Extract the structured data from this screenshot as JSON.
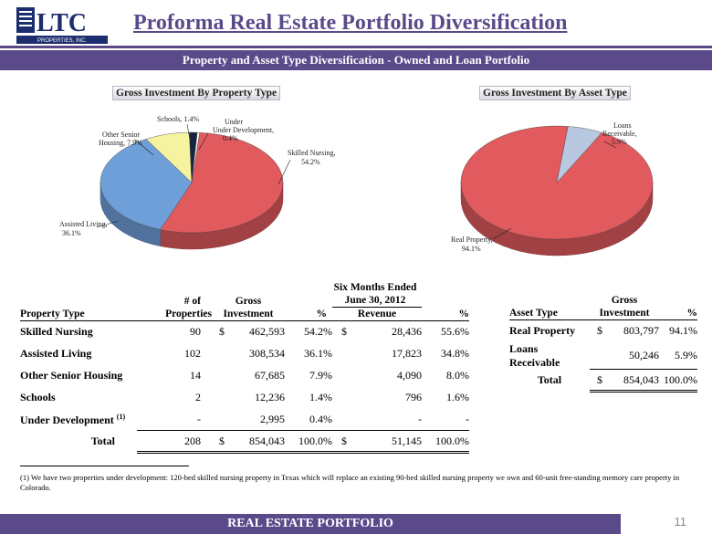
{
  "logo": {
    "text": "LTC",
    "subtext": "PROPERTIES, INC."
  },
  "title": "Proforma Real Estate Portfolio Diversification",
  "banner": "Property and Asset Type Diversification - Owned and Loan Portfolio",
  "chart_data": [
    {
      "type": "pie",
      "title": "Gross Investment By Property Type",
      "slices": [
        {
          "label": "Skilled Nursing,",
          "pct_label": "54.2%",
          "value": 54.2,
          "color": "#e05a5e"
        },
        {
          "label": "Assisted Living,",
          "pct_label": "36.1%",
          "value": 36.1,
          "color": "#6f9fd8"
        },
        {
          "label": "Other Senior Housing, 7.9%",
          "pct_label": "",
          "value": 7.9,
          "color": "#f5f2a0"
        },
        {
          "label": "Schools, 1.4%",
          "pct_label": "",
          "value": 1.4,
          "color": "#1a2340"
        },
        {
          "label": "Under Development,",
          "pct_label": "0.4%",
          "value": 0.4,
          "color": "#ffffff"
        }
      ]
    },
    {
      "type": "pie",
      "title": "Gross Investment By Asset Type",
      "slices": [
        {
          "label": "Real Property,",
          "pct_label": "94.1%",
          "value": 94.1,
          "color": "#e05a5e"
        },
        {
          "label": "Loans Receivable,",
          "pct_label": "5.9%",
          "value": 5.9,
          "color": "#b8c8e0"
        }
      ]
    }
  ],
  "property_table": {
    "headers": {
      "type": "Property Type",
      "num1": "# of",
      "num2": "Properties",
      "gross1": "Gross",
      "gross2": "Investment",
      "pct": "%",
      "six1": "Six Months Ended",
      "six2": "June 30, 2012",
      "rev": "Revenue",
      "rpct": "%"
    },
    "rows": [
      {
        "type": "Skilled Nursing",
        "sup": "",
        "num": "90",
        "cur": "$",
        "gross": "462,593",
        "pct": "54.2%",
        "rcur": "$",
        "rev": "28,436",
        "rpct": "55.6%"
      },
      {
        "type": "Assisted Living",
        "sup": "",
        "num": "102",
        "cur": "",
        "gross": "308,534",
        "pct": "36.1%",
        "rcur": "",
        "rev": "17,823",
        "rpct": "34.8%"
      },
      {
        "type": "Other Senior Housing",
        "sup": "",
        "num": "14",
        "cur": "",
        "gross": "67,685",
        "pct": "7.9%",
        "rcur": "",
        "rev": "4,090",
        "rpct": "8.0%"
      },
      {
        "type": "Schools",
        "sup": "",
        "num": "2",
        "cur": "",
        "gross": "12,236",
        "pct": "1.4%",
        "rcur": "",
        "rev": "796",
        "rpct": "1.6%"
      },
      {
        "type": "Under Development",
        "sup": "(1)",
        "num": "-",
        "cur": "",
        "gross": "2,995",
        "pct": "0.4%",
        "rcur": "",
        "rev": "-",
        "rpct": "-"
      }
    ],
    "total": {
      "label": "Total",
      "num": "208",
      "cur": "$",
      "gross": "854,043",
      "pct": "100.0%",
      "rcur": "$",
      "rev": "51,145",
      "rpct": "100.0%"
    }
  },
  "asset_table": {
    "headers": {
      "type": "Asset Type",
      "gross1": "Gross",
      "gross2": "Investment",
      "pct": "%"
    },
    "rows": [
      {
        "type": "Real Property",
        "cur": "$",
        "gross": "803,797",
        "pct": "94.1%"
      },
      {
        "type": "Loans Receivable",
        "cur": "",
        "gross": "50,246",
        "pct": "5.9%"
      }
    ],
    "total": {
      "label": "Total",
      "cur": "$",
      "gross": "854,043",
      "pct": "100.0%"
    }
  },
  "footnote": "(1)    We have two properties under development:  120-bed skilled nursing property in Texas which will replace an existing 90-bed skilled nursing property we own and 60-unit free-standing memory care property in Colorado.",
  "footer": "REAL ESTATE PORTFOLIO",
  "page_number": "11"
}
